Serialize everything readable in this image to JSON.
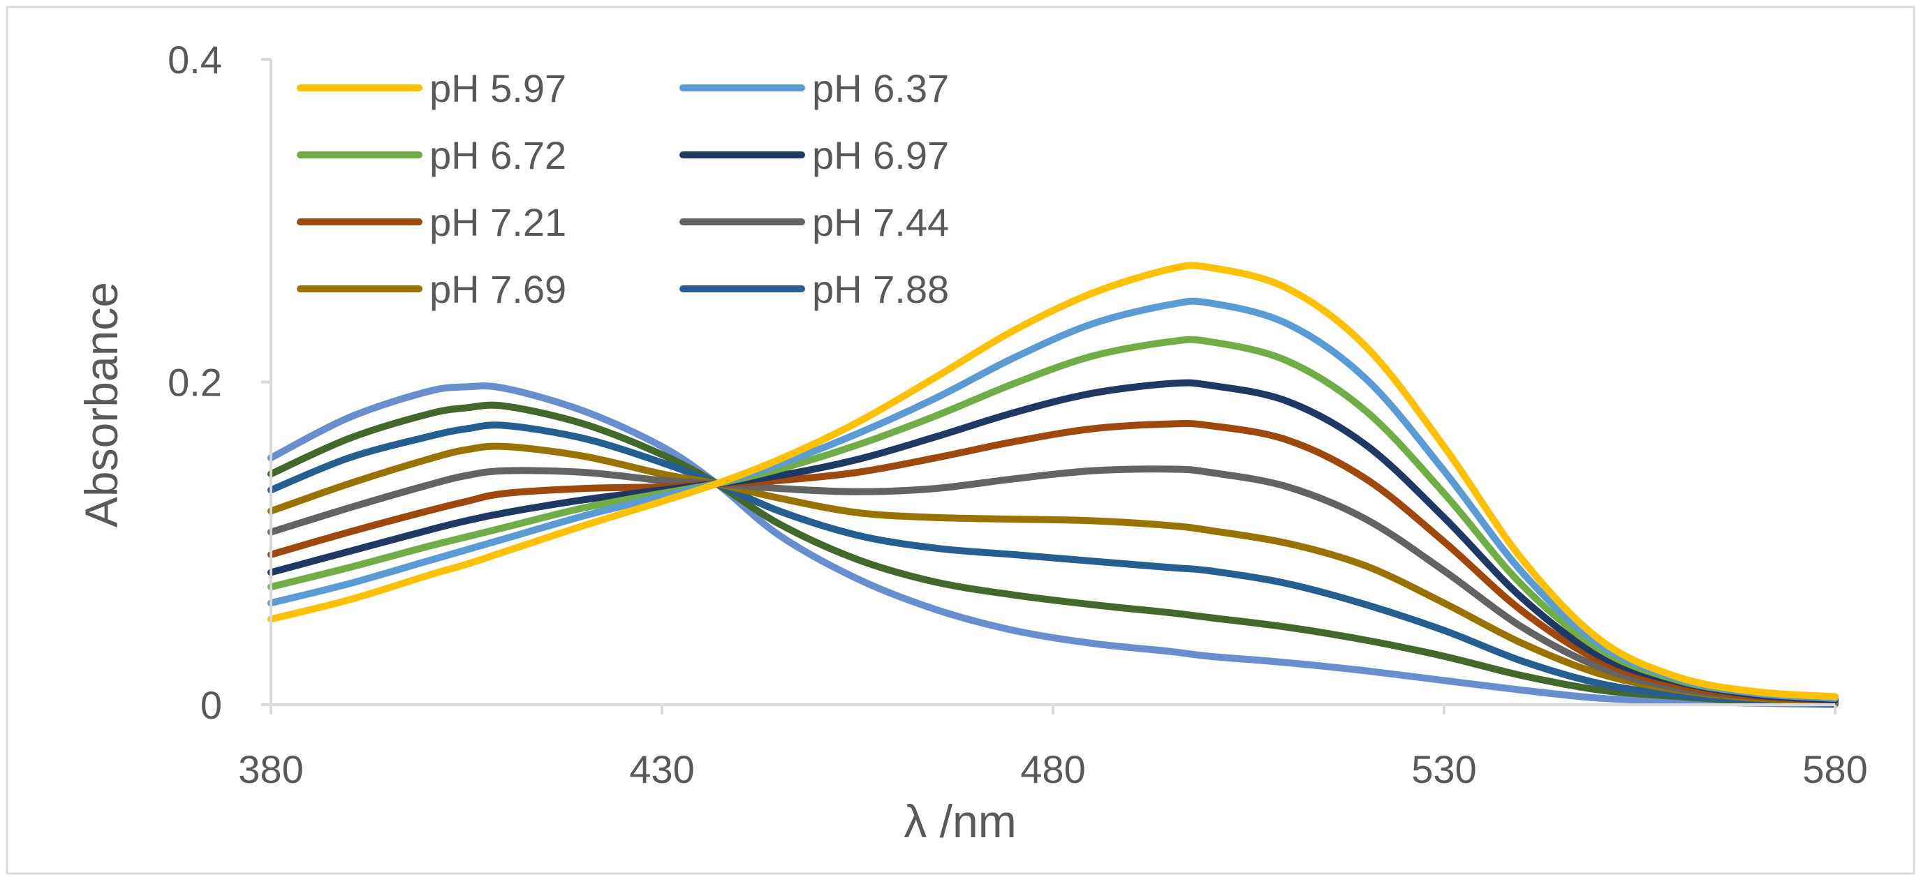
{
  "chart_data": {
    "type": "line",
    "title": "",
    "xlabel": "λ /nm",
    "ylabel": "Absorbance",
    "xlim": [
      380,
      580
    ],
    "ylim": [
      0,
      0.4
    ],
    "x_ticks": [
      380,
      430,
      480,
      530,
      580
    ],
    "x_tick_labels": [
      "380",
      "430",
      "480",
      "530",
      "580"
    ],
    "y_ticks": [
      0,
      0.2,
      0.4
    ],
    "y_tick_labels": [
      "0",
      "0.2",
      "0.4"
    ],
    "grid": false,
    "legend_position": "top-left",
    "x": [
      380,
      390,
      400,
      405,
      410,
      420,
      430,
      437,
      445,
      455,
      465,
      475,
      485,
      495,
      500,
      510,
      520,
      530,
      540,
      550,
      560,
      570,
      580
    ],
    "series": [
      {
        "name": "pH 5.97",
        "color": "#FFC000",
        "values": [
          0.053,
          0.065,
          0.08,
          0.087,
          0.095,
          0.111,
          0.126,
          0.137,
          0.152,
          0.175,
          0.203,
          0.232,
          0.255,
          0.27,
          0.271,
          0.258,
          0.222,
          0.16,
          0.09,
          0.04,
          0.017,
          0.008,
          0.005
        ]
      },
      {
        "name": "pH 6.37",
        "color": "#5B9BD5",
        "values": [
          0.063,
          0.075,
          0.089,
          0.096,
          0.103,
          0.117,
          0.129,
          0.137,
          0.149,
          0.168,
          0.19,
          0.215,
          0.236,
          0.248,
          0.249,
          0.236,
          0.202,
          0.145,
          0.082,
          0.037,
          0.016,
          0.007,
          0.004
        ]
      },
      {
        "name": "pH 6.72",
        "color": "#70AD47",
        "values": [
          0.073,
          0.085,
          0.098,
          0.104,
          0.11,
          0.122,
          0.131,
          0.137,
          0.146,
          0.161,
          0.179,
          0.199,
          0.216,
          0.225,
          0.225,
          0.213,
          0.182,
          0.131,
          0.074,
          0.034,
          0.015,
          0.007,
          0.004
        ]
      },
      {
        "name": "pH 6.97",
        "color": "#203864",
        "values": [
          0.082,
          0.095,
          0.108,
          0.114,
          0.119,
          0.127,
          0.133,
          0.137,
          0.142,
          0.152,
          0.166,
          0.181,
          0.193,
          0.199,
          0.198,
          0.188,
          0.161,
          0.116,
          0.066,
          0.03,
          0.014,
          0.006,
          0.003
        ]
      },
      {
        "name": "pH 7.21",
        "color": "#9E480E",
        "values": [
          0.093,
          0.107,
          0.12,
          0.126,
          0.131,
          0.134,
          0.135,
          0.137,
          0.139,
          0.144,
          0.153,
          0.163,
          0.171,
          0.174,
          0.173,
          0.164,
          0.14,
          0.101,
          0.058,
          0.027,
          0.012,
          0.005,
          0.003
        ]
      },
      {
        "name": "pH 7.44",
        "color": "#636363",
        "values": [
          0.107,
          0.122,
          0.136,
          0.142,
          0.145,
          0.144,
          0.139,
          0.137,
          0.134,
          0.132,
          0.134,
          0.14,
          0.145,
          0.146,
          0.144,
          0.135,
          0.115,
          0.083,
          0.048,
          0.023,
          0.01,
          0.005,
          0.003
        ]
      },
      {
        "name": "pH 7.69",
        "color": "#997300",
        "values": [
          0.12,
          0.137,
          0.152,
          0.158,
          0.16,
          0.154,
          0.143,
          0.137,
          0.128,
          0.119,
          0.116,
          0.115,
          0.114,
          0.111,
          0.108,
          0.1,
          0.086,
          0.063,
          0.038,
          0.019,
          0.009,
          0.004,
          0.002
        ]
      },
      {
        "name": "pH 7.88",
        "color": "#255E91",
        "values": [
          0.133,
          0.153,
          0.166,
          0.171,
          0.173,
          0.165,
          0.15,
          0.137,
          0.12,
          0.105,
          0.097,
          0.093,
          0.089,
          0.085,
          0.083,
          0.075,
          0.062,
          0.046,
          0.027,
          0.013,
          0.006,
          0.003,
          0.002
        ]
      },
      {
        "name": "",
        "color": "#43682B",
        "values": [
          0.143,
          0.165,
          0.18,
          0.184,
          0.185,
          0.174,
          0.155,
          0.137,
          0.112,
          0.09,
          0.076,
          0.068,
          0.062,
          0.057,
          0.054,
          0.048,
          0.04,
          0.03,
          0.018,
          0.009,
          0.005,
          0.002,
          0.001
        ]
      },
      {
        "name": "",
        "color": "#698ED0",
        "values": [
          0.153,
          0.178,
          0.194,
          0.197,
          0.196,
          0.182,
          0.16,
          0.137,
          0.105,
          0.078,
          0.059,
          0.046,
          0.038,
          0.033,
          0.03,
          0.026,
          0.021,
          0.015,
          0.009,
          0.004,
          0.002,
          0.001,
          0.0
        ]
      }
    ]
  }
}
